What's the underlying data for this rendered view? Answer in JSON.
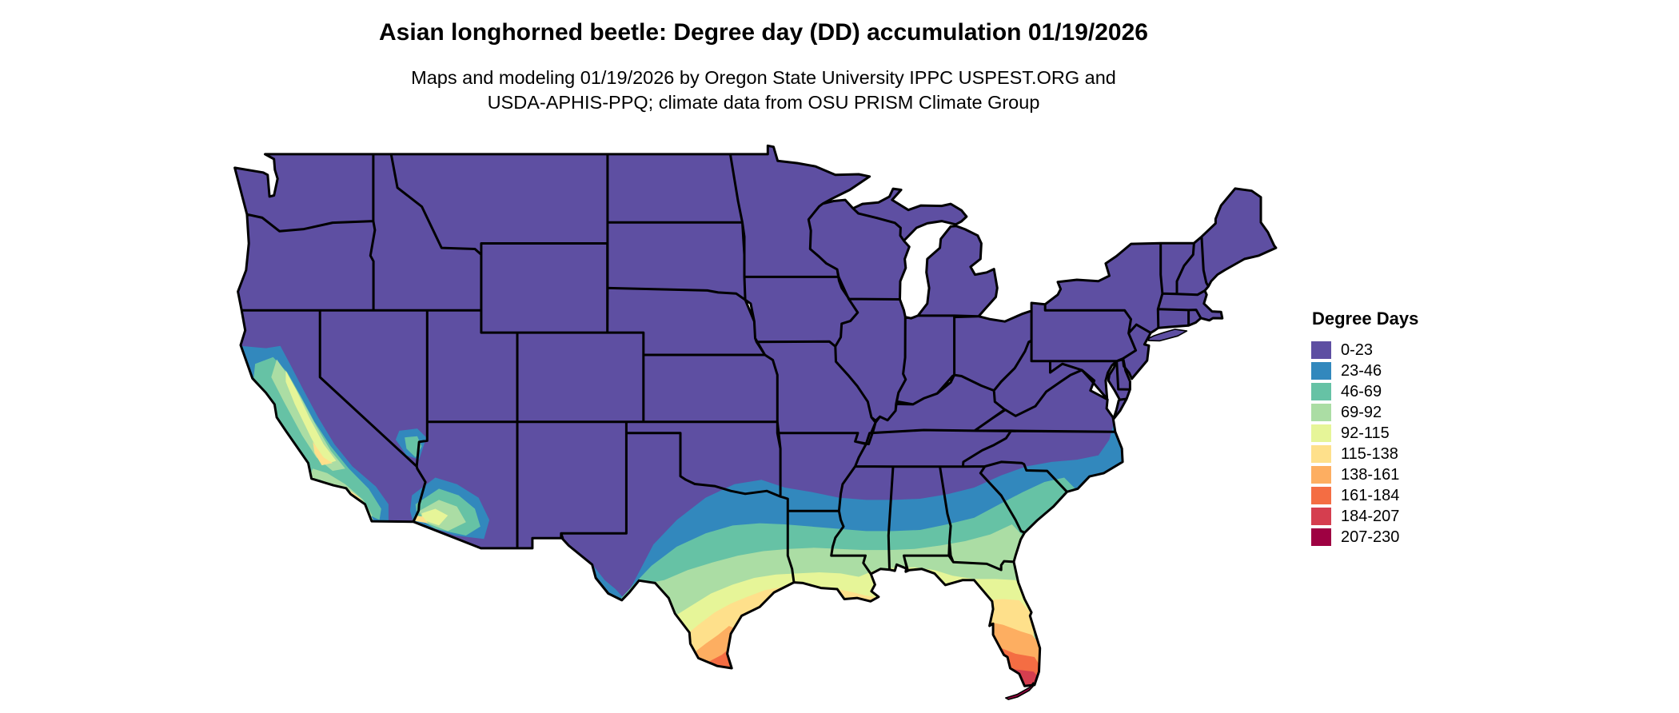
{
  "header": {
    "title": "Asian longhorned beetle: Degree day (DD) accumulation 01/19/2026",
    "subtitle_line1": "Maps and modeling 01/19/2026 by Oregon State University IPPC USPEST.ORG and",
    "subtitle_line2": "USDA-APHIS-PPQ; climate data from OSU PRISM Climate Group"
  },
  "legend": {
    "title": "Degree Days",
    "items": [
      {
        "label": "0-23",
        "color": "#5e4fa2"
      },
      {
        "label": "23-46",
        "color": "#3288bd"
      },
      {
        "label": "46-69",
        "color": "#66c2a5"
      },
      {
        "label": "69-92",
        "color": "#abdda4"
      },
      {
        "label": "92-115",
        "color": "#e6f598"
      },
      {
        "label": "115-138",
        "color": "#fee08b"
      },
      {
        "label": "138-161",
        "color": "#fdae61"
      },
      {
        "label": "161-184",
        "color": "#f46d43"
      },
      {
        "label": "184-207",
        "color": "#d53e4f"
      },
      {
        "label": "207-230",
        "color": "#9e0142"
      }
    ]
  },
  "map": {
    "region": "Conterminous United States",
    "base_class_label": "0-23",
    "border_color": "#000000",
    "background_color": "#ffffff"
  }
}
